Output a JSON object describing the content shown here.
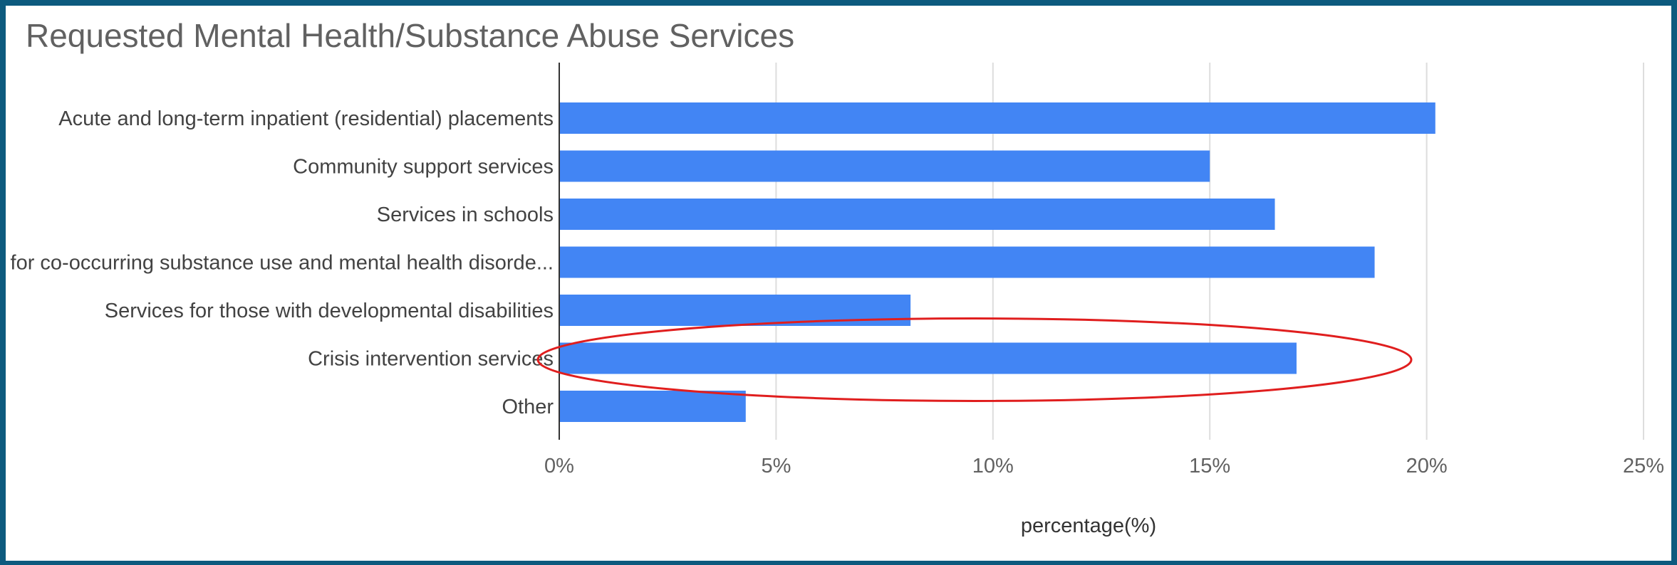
{
  "chart_data": {
    "type": "bar",
    "orientation": "horizontal",
    "title": "Requested Mental Health/Substance Abuse Services",
    "xlabel": "percentage(%)",
    "ylabel": "",
    "xlim": [
      0,
      25
    ],
    "x_ticks": [
      "0%",
      "5%",
      "10%",
      "15%",
      "20%",
      "25%"
    ],
    "x_tick_values": [
      0,
      5,
      10,
      15,
      20,
      25
    ],
    "grid": true,
    "legend": "none",
    "categories": [
      "Acute and long-term inpatient (residential) placements",
      "Community support services",
      "Services in schools",
      "Services for co-occurring substance use and mental health disorde...",
      "Services for those with developmental disabilities",
      "Crisis intervention services",
      "Other"
    ],
    "values": [
      20.2,
      15.0,
      16.5,
      18.8,
      8.1,
      17.0,
      4.3
    ],
    "highlighted_category": "Crisis intervention services",
    "colors": {
      "bar": "#4285f4",
      "highlight_ellipse": "#e01e1e",
      "frame": "#0d5a7e",
      "grid": "#dddddd",
      "axis": "#333333"
    }
  }
}
